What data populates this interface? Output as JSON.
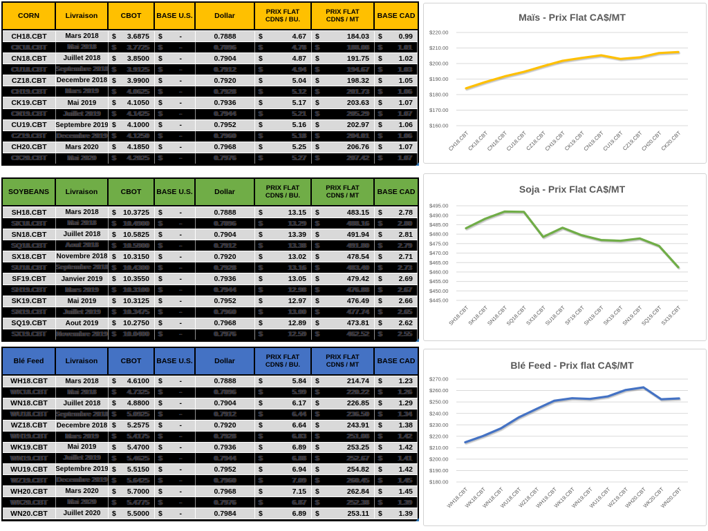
{
  "ui": {
    "dollar_sign": "$",
    "background": "#ffffff",
    "light_row_color": "#D9D9D9",
    "dark_row_color": "#000000"
  },
  "tables": [
    {
      "title": "CORN",
      "header_color": "#FFC000",
      "columns": [
        {
          "t": "CORN"
        },
        {
          "t": "Livraison"
        },
        {
          "t": "CBOT"
        },
        {
          "t": "BASE U.S."
        },
        {
          "t": "Dollar"
        },
        {
          "t": "PRIX FLAT",
          "t2": "CDN$ / BU."
        },
        {
          "t": "PRIX FLAT",
          "t2": "CDN$ / MT"
        },
        {
          "t": "BASE CAD"
        }
      ],
      "rows": [
        {
          "ticker": "CH18.CBT",
          "livraison": "Mars 2018",
          "cbot": "3.6875",
          "base_us": "-",
          "dollar": "0.7888",
          "prix_bu": "4.67",
          "prix_mt": "184.03",
          "base_cad": "0.99",
          "dark": false
        },
        {
          "ticker": "CK18.CBT",
          "livraison": "Mai 2018",
          "cbot": "3.7725",
          "base_us": "-",
          "dollar": "0.7896",
          "prix_bu": "4.78",
          "prix_mt": "188.08",
          "base_cad": "1.01",
          "dark": true
        },
        {
          "ticker": "CN18.CBT",
          "livraison": "Juillet 2018",
          "cbot": "3.8500",
          "base_us": "-",
          "dollar": "0.7904",
          "prix_bu": "4.87",
          "prix_mt": "191.75",
          "base_cad": "1.02",
          "dark": false
        },
        {
          "ticker": "CU18.CBT",
          "livraison": "Septembre 2018",
          "cbot": "3.9125",
          "base_us": "-",
          "dollar": "0.7912",
          "prix_bu": "4.94",
          "prix_mt": "194.67",
          "base_cad": "1.03",
          "dark": true
        },
        {
          "ticker": "CZ18.CBT",
          "livraison": "Decembre 2018",
          "cbot": "3.9900",
          "base_us": "-",
          "dollar": "0.7920",
          "prix_bu": "5.04",
          "prix_mt": "198.32",
          "base_cad": "1.05",
          "dark": false
        },
        {
          "ticker": "CH19.CBT",
          "livraison": "Mars 2019",
          "cbot": "4.0625",
          "base_us": "-",
          "dollar": "0.7928",
          "prix_bu": "5.12",
          "prix_mt": "201.73",
          "base_cad": "1.06",
          "dark": true
        },
        {
          "ticker": "CK19.CBT",
          "livraison": "Mai 2019",
          "cbot": "4.1050",
          "base_us": "-",
          "dollar": "0.7936",
          "prix_bu": "5.17",
          "prix_mt": "203.63",
          "base_cad": "1.07",
          "dark": false
        },
        {
          "ticker": "CN19.CBT",
          "livraison": "Juillet 2019",
          "cbot": "4.1425",
          "base_us": "-",
          "dollar": "0.7944",
          "prix_bu": "5.21",
          "prix_mt": "205.29",
          "base_cad": "1.07",
          "dark": true
        },
        {
          "ticker": "CU19.CBT",
          "livraison": "Septembre 2019",
          "cbot": "4.1000",
          "base_us": "-",
          "dollar": "0.7952",
          "prix_bu": "5.16",
          "prix_mt": "202.97",
          "base_cad": "1.06",
          "dark": false
        },
        {
          "ticker": "CZ19.CBT",
          "livraison": "Decembre 2019",
          "cbot": "4.1250",
          "base_us": "-",
          "dollar": "0.7960",
          "prix_bu": "5.18",
          "prix_mt": "204.01",
          "base_cad": "1.06",
          "dark": true
        },
        {
          "ticker": "CH20.CBT",
          "livraison": "Mars 2020",
          "cbot": "4.1850",
          "base_us": "-",
          "dollar": "0.7968",
          "prix_bu": "5.25",
          "prix_mt": "206.76",
          "base_cad": "1.07",
          "dark": false
        },
        {
          "ticker": "CK20.CBT",
          "livraison": "Mai 2020",
          "cbot": "4.2025",
          "base_us": "-",
          "dollar": "0.7976",
          "prix_bu": "5.27",
          "prix_mt": "207.42",
          "base_cad": "1.07",
          "dark": true
        }
      ]
    },
    {
      "title": "SOYBEANS",
      "header_color": "#70AD47",
      "columns": [
        {
          "t": "SOYBEANS"
        },
        {
          "t": "Livraison"
        },
        {
          "t": "CBOT"
        },
        {
          "t": "BASE U.S."
        },
        {
          "t": "Dollar"
        },
        {
          "t": "PRIX FLAT",
          "t2": "CDN$ / BU."
        },
        {
          "t": "PRIX FLAT",
          "t2": "CDN$ / MT"
        },
        {
          "t": "BASE CAD"
        }
      ],
      "rows": [
        {
          "ticker": "SH18.CBT",
          "livraison": "Mars 2018",
          "cbot": "10.3725",
          "base_us": "-",
          "dollar": "0.7888",
          "prix_bu": "13.15",
          "prix_mt": "483.15",
          "base_cad": "2.78",
          "dark": false
        },
        {
          "ticker": "SK18.CBT",
          "livraison": "Mai 2018",
          "cbot": "10.4900",
          "base_us": "-",
          "dollar": "0.7896",
          "prix_bu": "13.29",
          "prix_mt": "488.16",
          "base_cad": "2.80",
          "dark": true
        },
        {
          "ticker": "SN18.CBT",
          "livraison": "Juillet 2018",
          "cbot": "10.5825",
          "base_us": "-",
          "dollar": "0.7904",
          "prix_bu": "13.39",
          "prix_mt": "491.94",
          "base_cad": "2.81",
          "dark": false
        },
        {
          "ticker": "SQ18.CBT",
          "livraison": "Aout 2018",
          "cbot": "10.5900",
          "base_us": "-",
          "dollar": "0.7912",
          "prix_bu": "13.38",
          "prix_mt": "491.80",
          "base_cad": "2.79",
          "dark": true
        },
        {
          "ticker": "SX18.CBT",
          "livraison": "Novembre 2018",
          "cbot": "10.3150",
          "base_us": "-",
          "dollar": "0.7920",
          "prix_bu": "13.02",
          "prix_mt": "478.54",
          "base_cad": "2.71",
          "dark": false
        },
        {
          "ticker": "SU18.CBT",
          "livraison": "Septembre 2018",
          "cbot": "10.4300",
          "base_us": "-",
          "dollar": "0.7928",
          "prix_bu": "13.16",
          "prix_mt": "483.40",
          "base_cad": "2.73",
          "dark": true
        },
        {
          "ticker": "SF19.CBT",
          "livraison": "Janvier 2019",
          "cbot": "10.3550",
          "base_us": "-",
          "dollar": "0.7936",
          "prix_bu": "13.05",
          "prix_mt": "479.42",
          "base_cad": "2.69",
          "dark": false
        },
        {
          "ticker": "SH19.CBT",
          "livraison": "Mars 2019",
          "cbot": "10.3100",
          "base_us": "-",
          "dollar": "0.7944",
          "prix_bu": "12.98",
          "prix_mt": "476.88",
          "base_cad": "2.67",
          "dark": true
        },
        {
          "ticker": "SK19.CBT",
          "livraison": "Mai 2019",
          "cbot": "10.3125",
          "base_us": "-",
          "dollar": "0.7952",
          "prix_bu": "12.97",
          "prix_mt": "476.49",
          "base_cad": "2.66",
          "dark": false
        },
        {
          "ticker": "SN19.CBT",
          "livraison": "Juillet 2019",
          "cbot": "10.3475",
          "base_us": "-",
          "dollar": "0.7960",
          "prix_bu": "13.00",
          "prix_mt": "477.74",
          "base_cad": "2.65",
          "dark": true
        },
        {
          "ticker": "SQ19.CBT",
          "livraison": "Aout 2019",
          "cbot": "10.2750",
          "base_us": "-",
          "dollar": "0.7968",
          "prix_bu": "12.89",
          "prix_mt": "473.81",
          "base_cad": "2.62",
          "dark": false
        },
        {
          "ticker": "SX19.CBT",
          "livraison": "Novembre 2019",
          "cbot": "10.0400",
          "base_us": "-",
          "dollar": "0.7976",
          "prix_bu": "12.59",
          "prix_mt": "462.52",
          "base_cad": "2.55",
          "dark": true
        }
      ]
    },
    {
      "title": "Blé Feed",
      "header_color": "#4472C4",
      "columns": [
        {
          "t": "Blé Feed"
        },
        {
          "t": "Livraison"
        },
        {
          "t": "CBOT"
        },
        {
          "t": "BASE U.S."
        },
        {
          "t": "Dollar"
        },
        {
          "t": "PRIX FLAT",
          "t2": "CDN$ / BU."
        },
        {
          "t": "PRIX FLAT",
          "t2": "CDN$ / MT"
        },
        {
          "t": "BASE CAD"
        }
      ],
      "rows": [
        {
          "ticker": "WH18.CBT",
          "livraison": "Mars 2018",
          "cbot": "4.6100",
          "base_us": "-",
          "dollar": "0.7888",
          "prix_bu": "5.84",
          "prix_mt": "214.74",
          "base_cad": "1.23",
          "dark": false
        },
        {
          "ticker": "WK18.CBT",
          "livraison": "Mai 2018",
          "cbot": "4.7325",
          "base_us": "-",
          "dollar": "0.7896",
          "prix_bu": "5.99",
          "prix_mt": "220.22",
          "base_cad": "1.26",
          "dark": true
        },
        {
          "ticker": "WN18.CBT",
          "livraison": "Juillet 2018",
          "cbot": "4.8800",
          "base_us": "-",
          "dollar": "0.7904",
          "prix_bu": "6.17",
          "prix_mt": "226.85",
          "base_cad": "1.29",
          "dark": false
        },
        {
          "ticker": "WU18.CBT",
          "livraison": "Septembre 2018",
          "cbot": "5.0925",
          "base_us": "-",
          "dollar": "0.7912",
          "prix_bu": "6.44",
          "prix_mt": "236.50",
          "base_cad": "1.34",
          "dark": true
        },
        {
          "ticker": "WZ18.CBT",
          "livraison": "Decembre 2018",
          "cbot": "5.2575",
          "base_us": "-",
          "dollar": "0.7920",
          "prix_bu": "6.64",
          "prix_mt": "243.91",
          "base_cad": "1.38",
          "dark": false
        },
        {
          "ticker": "WH19.CBT",
          "livraison": "Mars 2019",
          "cbot": "5.4175",
          "base_us": "-",
          "dollar": "0.7928",
          "prix_bu": "6.83",
          "prix_mt": "251.08",
          "base_cad": "1.42",
          "dark": true
        },
        {
          "ticker": "WK19.CBT",
          "livraison": "Mai 2019",
          "cbot": "5.4700",
          "base_us": "-",
          "dollar": "0.7936",
          "prix_bu": "6.89",
          "prix_mt": "253.25",
          "base_cad": "1.42",
          "dark": false
        },
        {
          "ticker": "WN19.CBT",
          "livraison": "Juillet 2019",
          "cbot": "5.4625",
          "base_us": "-",
          "dollar": "0.7944",
          "prix_bu": "6.88",
          "prix_mt": "252.67",
          "base_cad": "1.41",
          "dark": true
        },
        {
          "ticker": "WU19.CBT",
          "livraison": "Septembre 2019",
          "cbot": "5.5150",
          "base_us": "-",
          "dollar": "0.7952",
          "prix_bu": "6.94",
          "prix_mt": "254.82",
          "base_cad": "1.42",
          "dark": false
        },
        {
          "ticker": "WZ19.CBT",
          "livraison": "Decembre 2019",
          "cbot": "5.6425",
          "base_us": "-",
          "dollar": "0.7960",
          "prix_bu": "7.09",
          "prix_mt": "260.45",
          "base_cad": "1.45",
          "dark": true
        },
        {
          "ticker": "WH20.CBT",
          "livraison": "Mars 2020",
          "cbot": "5.7000",
          "base_us": "-",
          "dollar": "0.7968",
          "prix_bu": "7.15",
          "prix_mt": "262.84",
          "base_cad": "1.45",
          "dark": false
        },
        {
          "ticker": "WK20.CBT",
          "livraison": "Mai 2020",
          "cbot": "5.4775",
          "base_us": "-",
          "dollar": "0.7976",
          "prix_bu": "6.87",
          "prix_mt": "252.38",
          "base_cad": "1.39",
          "dark": true
        },
        {
          "ticker": "WN20.CBT",
          "livraison": "Juillet 2020",
          "cbot": "5.5000",
          "base_us": "-",
          "dollar": "0.7984",
          "prix_bu": "6.89",
          "prix_mt": "253.11",
          "base_cad": "1.39",
          "dark": false
        }
      ]
    }
  ],
  "chart_data": [
    {
      "type": "line",
      "title": "Maïs - Prix Flat CA$/MT",
      "categories": [
        "CH18.CBT",
        "CK18.CBT",
        "CN18.CBT",
        "CU18.CBT",
        "CZ18.CBT",
        "CH19.CBT",
        "CK19.CBT",
        "CN19.CBT",
        "CU19.CBT",
        "CZ19.CBT",
        "CH20.CBT",
        "CK20.CBT"
      ],
      "values": [
        184.03,
        188.08,
        191.75,
        194.67,
        198.32,
        201.73,
        203.63,
        205.29,
        202.97,
        204.01,
        206.76,
        207.42
      ],
      "series_color": "#FFC000",
      "ylim": [
        160,
        220
      ],
      "ytick_step": 10,
      "yticks": [
        "$220.00",
        "$210.00",
        "$200.00",
        "$190.00",
        "$180.00",
        "$170.00",
        "$160.00"
      ],
      "grid": true,
      "legend": "none"
    },
    {
      "type": "line",
      "title": "Soja - Prix Flat CA$/MT",
      "categories": [
        "SH18.CBT",
        "SK18.CBT",
        "SN18.CBT",
        "SQ18.CBT",
        "SX18.CBT",
        "SU18.CBT",
        "SF19.CBT",
        "SH19.CBT",
        "SK19.CBT",
        "SN19.CBT",
        "SQ19.CBT",
        "SX19.CBT"
      ],
      "values": [
        483.15,
        488.16,
        491.94,
        491.8,
        478.54,
        483.4,
        479.42,
        476.88,
        476.49,
        477.74,
        473.81,
        462.52
      ],
      "series_color": "#70AD47",
      "ylim": [
        445,
        495
      ],
      "ytick_step": 5,
      "yticks": [
        "$495.00",
        "$490.00",
        "$485.00",
        "$480.00",
        "$475.00",
        "$470.00",
        "$465.00",
        "$460.00",
        "$455.00",
        "$450.00",
        "$445.00"
      ],
      "grid": true,
      "legend": "none"
    },
    {
      "type": "line",
      "title": "Blé Feed - Prix flat CA$/MT",
      "categories": [
        "WH18.CBT",
        "WK18.CBT",
        "WN18.CBT",
        "WU18.CBT",
        "WZ18.CBT",
        "WH19.CBT",
        "WK19.CBT",
        "WN19.CBT",
        "WU19.CBT",
        "WZ19.CBT",
        "WH20.CBT",
        "WK20.CBT",
        "WN20.CBT"
      ],
      "values": [
        214.74,
        220.22,
        226.85,
        236.5,
        243.91,
        251.08,
        253.25,
        252.67,
        254.82,
        260.45,
        262.84,
        252.38,
        253.11
      ],
      "series_color": "#4472C4",
      "ylim": [
        180,
        270
      ],
      "ytick_step": 10,
      "yticks": [
        "$270.00",
        "$260.00",
        "$250.00",
        "$240.00",
        "$230.00",
        "$220.00",
        "$210.00",
        "$200.00",
        "$190.00",
        "$180.00"
      ],
      "grid": true,
      "legend": "none"
    }
  ]
}
